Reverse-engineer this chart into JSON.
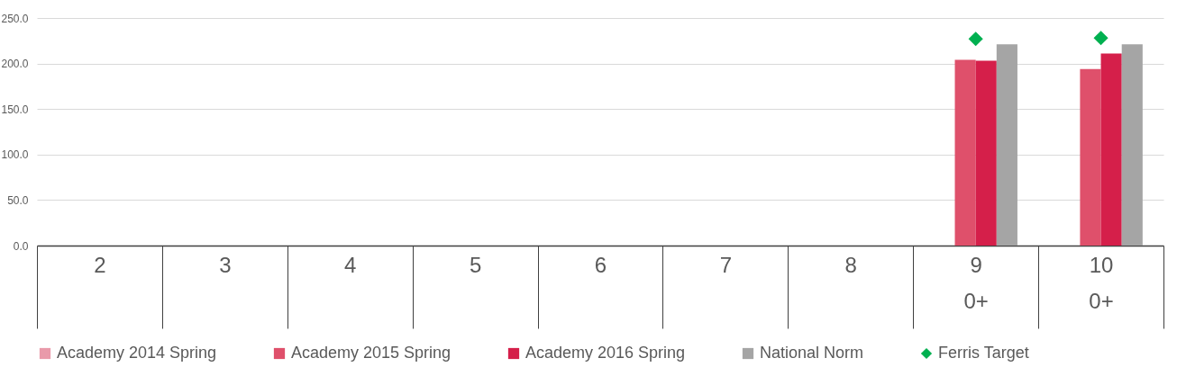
{
  "chart_data": {
    "type": "bar",
    "categories": [
      "2",
      "3",
      "4",
      "5",
      "6",
      "7",
      "8",
      "9\n0+",
      "10\n0+"
    ],
    "series": [
      {
        "name": "Academy 2014 Spring",
        "color": "#e99aaa",
        "values": [
          null,
          null,
          null,
          null,
          null,
          null,
          null,
          null,
          null
        ]
      },
      {
        "name": "Academy 2015 Spring",
        "color": "#df506b",
        "values": [
          null,
          null,
          null,
          null,
          null,
          null,
          null,
          204,
          194
        ]
      },
      {
        "name": "Academy 2016 Spring",
        "color": "#d51f4a",
        "values": [
          null,
          null,
          null,
          null,
          null,
          null,
          null,
          203,
          211
        ]
      },
      {
        "name": "National Norm",
        "color": "#a5a5a5",
        "values": [
          null,
          null,
          null,
          null,
          null,
          null,
          null,
          221,
          221
        ]
      },
      {
        "name": "Ferris Target",
        "type": "scatter",
        "color": "#00b050",
        "marker": "diamond",
        "values": [
          null,
          null,
          null,
          null,
          null,
          null,
          null,
          227,
          228
        ]
      }
    ],
    "ylim": [
      0,
      250
    ],
    "yticks": [
      {
        "value": 0,
        "label": "0.0"
      },
      {
        "value": 50,
        "label": "50.0"
      },
      {
        "value": 100,
        "label": "100.0"
      },
      {
        "value": 150,
        "label": "150.0"
      },
      {
        "value": 200,
        "label": "200.0"
      },
      {
        "value": 250,
        "label": "250.0"
      }
    ],
    "grid": "y",
    "legend": "bottom"
  }
}
